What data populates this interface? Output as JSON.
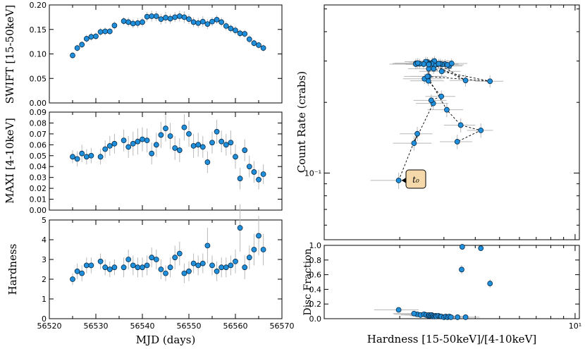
{
  "chart_data": [
    {
      "type": "scatter",
      "panel": "swift",
      "xlabel": "",
      "ylabel": "SWIFT [15-50keV]",
      "xlim": [
        56520,
        56570
      ],
      "ylim": [
        0.0,
        0.2
      ],
      "yticks": [
        "0.00",
        "0.05",
        "0.10",
        "0.15",
        "0.20"
      ],
      "x": [
        56525,
        56526,
        56527,
        56528,
        56529,
        56530,
        56531,
        56532,
        56533,
        56534,
        56536,
        56537,
        56538,
        56539,
        56540,
        56541,
        56542,
        56543,
        56544,
        56545,
        56546,
        56547,
        56548,
        56549,
        56550,
        56551,
        56552,
        56553,
        56554,
        56555,
        56556,
        56557,
        56558,
        56559,
        56560,
        56561,
        56562,
        56563,
        56564,
        56565,
        56566
      ],
      "y": [
        0.097,
        0.112,
        0.119,
        0.131,
        0.135,
        0.136,
        0.145,
        0.146,
        0.146,
        0.158,
        0.167,
        0.165,
        0.162,
        0.163,
        0.165,
        0.176,
        0.177,
        0.177,
        0.171,
        0.174,
        0.172,
        0.175,
        0.177,
        0.175,
        0.171,
        0.165,
        0.163,
        0.166,
        0.161,
        0.166,
        0.17,
        0.165,
        0.157,
        0.152,
        0.148,
        0.142,
        0.141,
        0.13,
        0.122,
        0.118,
        0.112
      ],
      "yerr": [
        0.006,
        0.007,
        0.007,
        0.008,
        0.008,
        0.007,
        0.008,
        0.008,
        0.007,
        0.008,
        0.008,
        0.009,
        0.009,
        0.01,
        0.009,
        0.01,
        0.011,
        0.01,
        0.011,
        0.012,
        0.01,
        0.01,
        0.011,
        0.012,
        0.01,
        0.01,
        0.01,
        0.011,
        0.01,
        0.009,
        0.009,
        0.009,
        0.009,
        0.008,
        0.009,
        0.008,
        0.008,
        0.008,
        0.007,
        0.007,
        0.007
      ]
    },
    {
      "type": "scatter",
      "panel": "maxi",
      "xlabel": "",
      "ylabel": "MAXI [4-10keV]",
      "xlim": [
        56520,
        56570
      ],
      "ylim": [
        0.0,
        0.09
      ],
      "yticks": [
        "0.00",
        "0.01",
        "0.02",
        "0.03",
        "0.04",
        "0.05",
        "0.06",
        "0.07",
        "0.08",
        "0.09"
      ],
      "x": [
        56525,
        56526,
        56527,
        56528,
        56529,
        56531,
        56532,
        56533,
        56534,
        56536,
        56537,
        56538,
        56539,
        56540,
        56541,
        56542,
        56543,
        56544,
        56545,
        56546,
        56547,
        56548,
        56549,
        56550,
        56551,
        56552,
        56553,
        56554,
        56555,
        56556,
        56557,
        56558,
        56559,
        56560,
        56561,
        56562,
        56563,
        56564,
        56565,
        56566
      ],
      "y": [
        0.049,
        0.047,
        0.052,
        0.049,
        0.05,
        0.049,
        0.056,
        0.059,
        0.061,
        0.064,
        0.058,
        0.061,
        0.063,
        0.065,
        0.064,
        0.052,
        0.06,
        0.069,
        0.075,
        0.068,
        0.057,
        0.055,
        0.076,
        0.07,
        0.059,
        0.06,
        0.058,
        0.044,
        0.062,
        0.072,
        0.063,
        0.06,
        0.062,
        0.049,
        0.029,
        0.055,
        0.04,
        0.035,
        0.028,
        0.033
      ],
      "yerr": [
        0.006,
        0.007,
        0.008,
        0.007,
        0.007,
        0.007,
        0.008,
        0.009,
        0.009,
        0.01,
        0.01,
        0.011,
        0.012,
        0.011,
        0.011,
        0.01,
        0.011,
        0.012,
        0.012,
        0.012,
        0.011,
        0.011,
        0.012,
        0.012,
        0.011,
        0.011,
        0.01,
        0.01,
        0.01,
        0.011,
        0.01,
        0.01,
        0.011,
        0.011,
        0.01,
        0.01,
        0.01,
        0.01,
        0.009,
        0.009
      ]
    },
    {
      "type": "scatter",
      "panel": "hardness",
      "xlabel": "MJD (days)",
      "ylabel": "Hardness",
      "xlim": [
        56520,
        56570
      ],
      "ylim": [
        0,
        5
      ],
      "xticks": [
        "56520",
        "56530",
        "56540",
        "56550",
        "56560",
        "56570"
      ],
      "yticks": [
        "0",
        "1",
        "2",
        "3",
        "4",
        "5"
      ],
      "x": [
        56525,
        56526,
        56527,
        56528,
        56529,
        56531,
        56532,
        56533,
        56534,
        56536,
        56537,
        56538,
        56539,
        56540,
        56541,
        56542,
        56543,
        56544,
        56545,
        56546,
        56547,
        56548,
        56549,
        56550,
        56551,
        56552,
        56553,
        56554,
        56555,
        56556,
        56557,
        56558,
        56559,
        56560,
        56561,
        56562,
        56563,
        56564,
        56565,
        56566
      ],
      "y": [
        2.0,
        2.4,
        2.3,
        2.7,
        2.7,
        2.9,
        2.6,
        2.5,
        2.6,
        2.6,
        3.0,
        2.7,
        2.6,
        2.6,
        2.7,
        3.1,
        3.0,
        2.5,
        2.3,
        2.6,
        3.1,
        3.3,
        2.3,
        2.4,
        2.8,
        2.7,
        2.8,
        3.7,
        2.7,
        2.4,
        2.6,
        2.6,
        2.7,
        2.9,
        4.6,
        2.6,
        3.1,
        3.5,
        4.2,
        3.5
      ],
      "yerr": [
        0.3,
        0.4,
        0.4,
        0.4,
        0.4,
        0.4,
        0.4,
        0.4,
        0.4,
        0.5,
        0.5,
        0.5,
        0.5,
        0.5,
        0.5,
        0.5,
        0.5,
        0.5,
        0.4,
        0.5,
        0.6,
        0.6,
        0.5,
        0.5,
        0.5,
        0.5,
        0.5,
        0.9,
        0.5,
        0.5,
        0.5,
        0.5,
        0.5,
        0.6,
        1.2,
        0.6,
        0.6,
        0.8,
        1.0,
        0.8
      ]
    },
    {
      "type": "scatter",
      "panel": "hid",
      "xlabel": "",
      "ylabel": "Count Rate (crabs)",
      "yscale": "log",
      "xscale": "log",
      "yticks": [
        "10⁻¹"
      ],
      "annotation": "t₀",
      "connected": true,
      "x": [
        1.98,
        2.35,
        2.28,
        2.72,
        2.67,
        2.93,
        2.6,
        2.51,
        2.61,
        2.61,
        3.03,
        2.7,
        2.58,
        2.54,
        2.75,
        3.15,
        2.95,
        2.49,
        2.32,
        2.62,
        3.1,
        3.22,
        2.32,
        2.4,
        2.9,
        2.75,
        2.86,
        3.66,
        2.68,
        2.36,
        2.62,
        2.61,
        2.73,
        2.94,
        4.58,
        2.58,
        3.08,
        3.5,
        4.21,
        3.39
      ],
      "y": [
        0.093,
        0.147,
        0.134,
        0.198,
        0.204,
        0.212,
        0.247,
        0.252,
        0.258,
        0.278,
        0.291,
        0.296,
        0.297,
        0.298,
        0.3,
        0.286,
        0.29,
        0.291,
        0.293,
        0.29,
        0.289,
        0.293,
        0.291,
        0.292,
        0.292,
        0.287,
        0.292,
        0.248,
        0.292,
        0.294,
        0.292,
        0.29,
        0.278,
        0.271,
        0.246,
        0.258,
        0.186,
        0.16,
        0.152,
        0.136
      ],
      "xerr": [
        0.45,
        0.35,
        0.4,
        0.4,
        0.4,
        0.4,
        0.4,
        0.45,
        0.4,
        0.45,
        0.4,
        0.4,
        0.4,
        0.45,
        0.45,
        0.4,
        0.45,
        0.5,
        0.45,
        0.45,
        0.5,
        0.5,
        0.5,
        0.5,
        0.5,
        0.5,
        0.5,
        0.5,
        0.5,
        0.45,
        0.5,
        0.5,
        0.5,
        0.55,
        0.6,
        0.5,
        0.5,
        0.5,
        0.5,
        0.5
      ],
      "yerr_frac": [
        0.08,
        0.07,
        0.07,
        0.06,
        0.06,
        0.06,
        0.05,
        0.05,
        0.05,
        0.05,
        0.05,
        0.05,
        0.05,
        0.05,
        0.05,
        0.05,
        0.05,
        0.05,
        0.05,
        0.05,
        0.05,
        0.05,
        0.05,
        0.05,
        0.05,
        0.05,
        0.05,
        0.06,
        0.05,
        0.05,
        0.05,
        0.05,
        0.05,
        0.05,
        0.06,
        0.06,
        0.07,
        0.07,
        0.07,
        0.07
      ]
    },
    {
      "type": "scatter",
      "panel": "disc",
      "xlabel": "Hardness [15-50keV]/[4-10keV]",
      "ylabel": "Disc Fraction",
      "xscale": "log",
      "ylim": [
        0.0,
        1.0
      ],
      "yticks": [
        "0.0",
        "0.2",
        "0.4",
        "0.6",
        "0.8",
        "1.0"
      ],
      "xticks": [
        "10¹"
      ],
      "x": [
        1.98,
        2.35,
        2.28,
        2.42,
        2.5,
        2.55,
        2.6,
        2.62,
        2.65,
        2.68,
        2.7,
        2.72,
        2.75,
        2.78,
        2.8,
        2.85,
        2.9,
        2.93,
        3.0,
        3.05,
        3.1,
        3.15,
        3.2,
        3.4,
        3.53,
        3.55,
        3.66,
        4.21,
        4.58
      ],
      "y": [
        0.12,
        0.06,
        0.07,
        0.05,
        0.06,
        0.05,
        0.04,
        0.05,
        0.04,
        0.05,
        0.03,
        0.04,
        0.03,
        0.04,
        0.03,
        0.04,
        0.03,
        0.03,
        0.02,
        0.03,
        0.02,
        0.03,
        0.02,
        0.02,
        0.67,
        0.98,
        0.02,
        0.96,
        0.48
      ],
      "xerr": [
        0.4,
        0.45,
        0.4,
        0.4,
        0.4,
        0.45,
        0.4,
        0.45,
        0.4,
        0.45,
        0.4,
        0.45,
        0.4,
        0.45,
        0.5,
        0.45,
        0.5,
        0.45,
        0.5,
        0.5,
        0.5,
        0.5,
        0.5,
        0.5,
        0.0,
        0.0,
        0.5,
        0.0,
        0.0
      ],
      "yerr": [
        0.03,
        0.02,
        0.02,
        0.02,
        0.02,
        0.02,
        0.02,
        0.02,
        0.02,
        0.02,
        0.02,
        0.02,
        0.02,
        0.02,
        0.02,
        0.02,
        0.02,
        0.02,
        0.02,
        0.02,
        0.02,
        0.02,
        0.02,
        0.02,
        0.06,
        0.0,
        0.02,
        0.0,
        0.06
      ]
    }
  ]
}
